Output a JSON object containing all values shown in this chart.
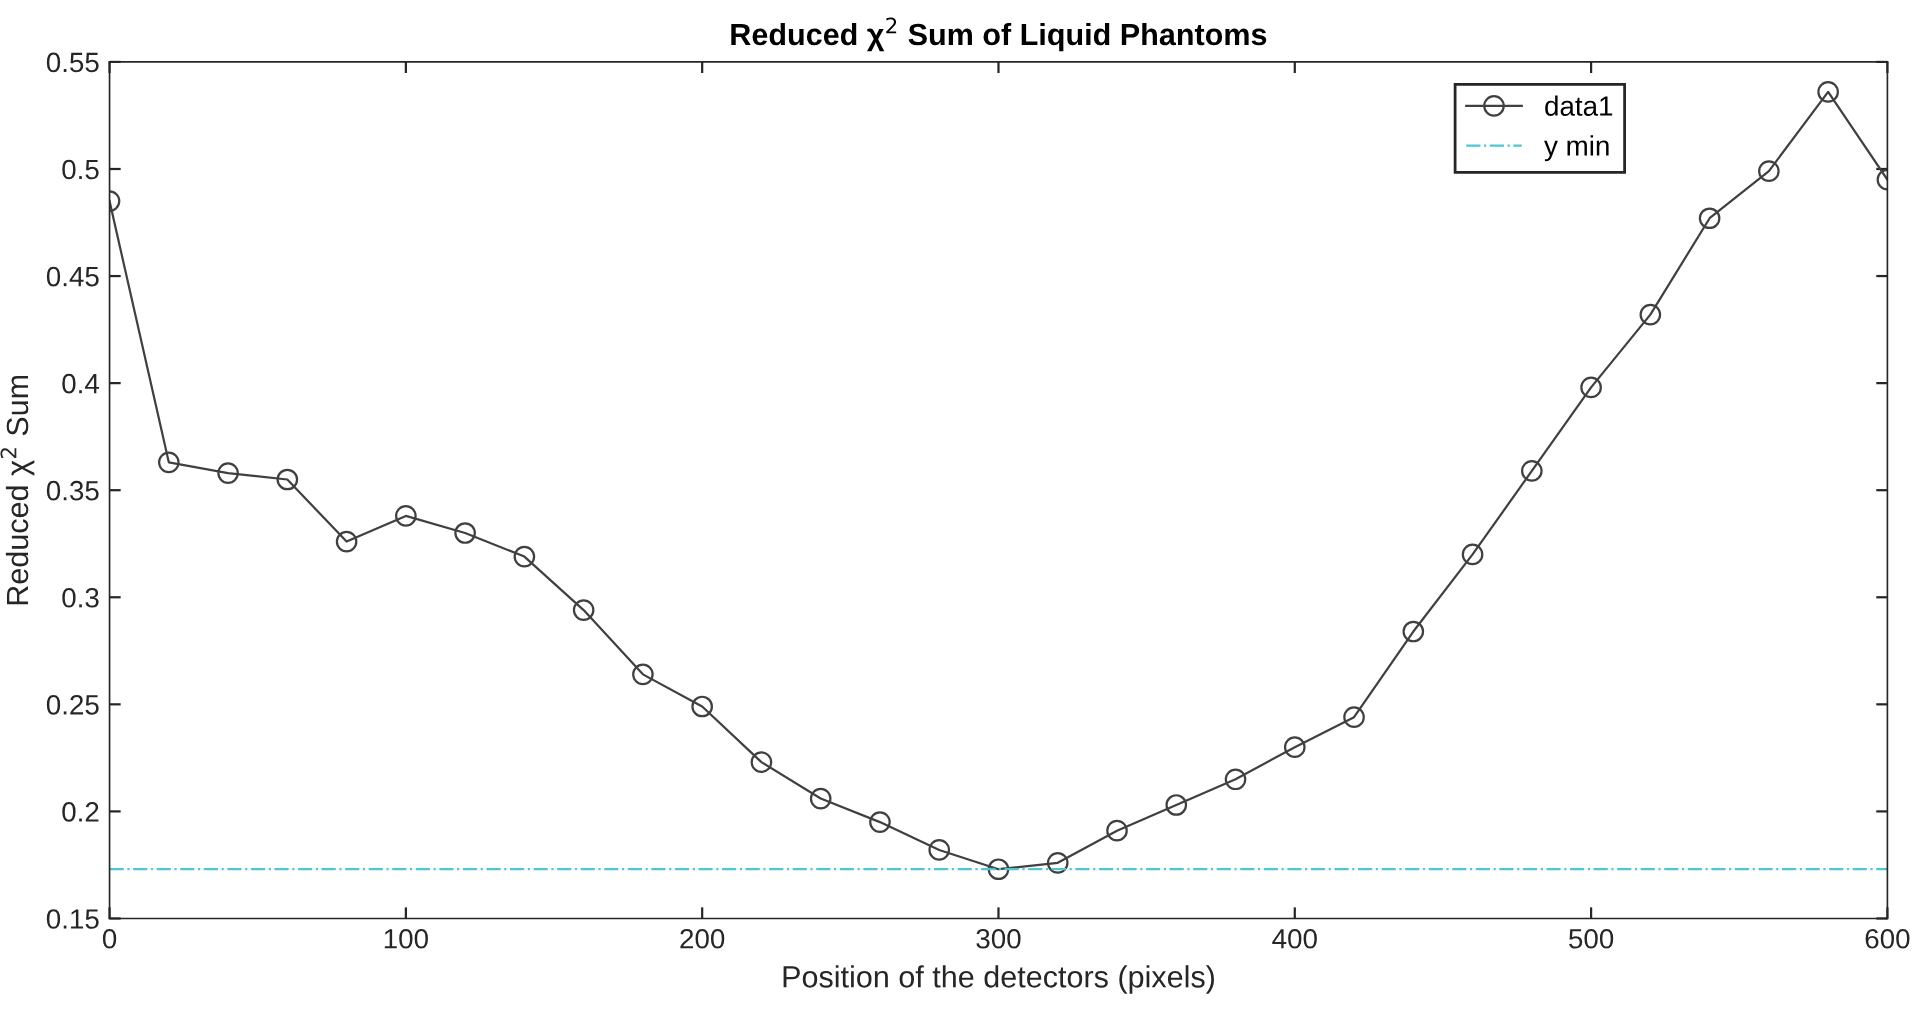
{
  "chart_data": {
    "type": "line",
    "title": "Reduced χ$^{2}$ Sum of Liquid Phantoms",
    "xlabel": "Position of the detectors (pixels)",
    "ylabel": "Reduced χ$^{2}$ Sum",
    "x": [
      0,
      20,
      40,
      60,
      80,
      100,
      120,
      140,
      160,
      180,
      200,
      220,
      240,
      260,
      280,
      300,
      320,
      340,
      360,
      380,
      400,
      420,
      440,
      460,
      480,
      500,
      520,
      540,
      560,
      580,
      600
    ],
    "series": [
      {
        "name": "data1",
        "color": "#404040",
        "values": [
          0.485,
          0.363,
          0.358,
          0.355,
          0.326,
          0.338,
          0.33,
          0.319,
          0.294,
          0.264,
          0.249,
          0.223,
          0.206,
          0.195,
          0.182,
          0.173,
          0.176,
          0.191,
          0.203,
          0.215,
          0.23,
          0.244,
          0.284,
          0.32,
          0.359,
          0.398,
          0.432,
          0.477,
          0.499,
          0.536,
          0.495
        ]
      }
    ],
    "ref_lines": [
      {
        "axis": "y",
        "value": 0.173,
        "label": "y min",
        "color": "#4dc8d0",
        "line_style": "dashdot"
      }
    ],
    "xlim": [
      0,
      600
    ],
    "xticks": [
      0,
      100,
      200,
      300,
      400,
      500,
      600
    ],
    "ylim": [
      0.15,
      0.55
    ],
    "yticks": [
      0.15,
      0.2,
      0.25,
      0.3,
      0.35,
      0.4,
      0.45,
      0.5,
      0.55
    ],
    "grid": false,
    "legend": "top right",
    "marker": "circle",
    "line_style": "solid"
  }
}
